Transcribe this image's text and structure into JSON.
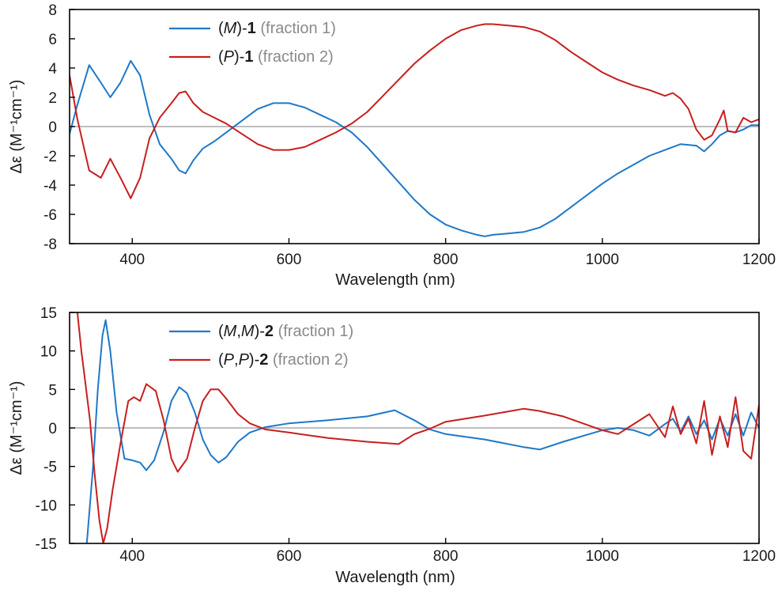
{
  "colors": {
    "blue": "#1f78c8",
    "red": "#c81e1e",
    "zero": "#a8a8a8",
    "note": "#8a8a8a"
  },
  "chart_data": [
    {
      "type": "line",
      "title": "",
      "xlabel": "Wavelength (nm)",
      "ylabel": "Δε (M⁻¹cm⁻¹)",
      "xlim": [
        320,
        1200
      ],
      "ylim": [
        -8,
        8
      ],
      "xticks": [
        400,
        600,
        800,
        1000,
        1200
      ],
      "yticks": [
        -8,
        -6,
        -4,
        -2,
        0,
        2,
        4,
        6,
        8
      ],
      "grid": false,
      "legend_position": "top-center",
      "legend": [
        {
          "prefix": "(",
          "italic": "M",
          "suffix": ")-",
          "bold": "1",
          "note": " (fraction 1)",
          "color": "blue"
        },
        {
          "prefix": "(",
          "italic": "P",
          "suffix": ")-",
          "bold": "1",
          "note": " (fraction 2)",
          "color": "red"
        }
      ],
      "series": [
        {
          "name": "(M)-1 (fraction 1)",
          "color": "blue",
          "x": [
            320,
            330,
            345,
            360,
            372,
            385,
            398,
            410,
            422,
            435,
            450,
            460,
            468,
            478,
            490,
            505,
            520,
            540,
            560,
            580,
            600,
            620,
            640,
            660,
            680,
            700,
            720,
            740,
            760,
            780,
            800,
            820,
            840,
            850,
            860,
            880,
            900,
            920,
            940,
            960,
            980,
            1000,
            1020,
            1040,
            1060,
            1080,
            1100,
            1120,
            1130,
            1140,
            1150,
            1160,
            1170,
            1180,
            1190,
            1200
          ],
          "y": [
            -0.5,
            1.5,
            4.2,
            3.0,
            2.0,
            3.0,
            4.5,
            3.5,
            0.8,
            -1.2,
            -2.2,
            -3.0,
            -3.2,
            -2.3,
            -1.5,
            -1.0,
            -0.4,
            0.4,
            1.2,
            1.6,
            1.6,
            1.3,
            0.8,
            0.3,
            -0.4,
            -1.4,
            -2.6,
            -3.8,
            -5.0,
            -6.0,
            -6.7,
            -7.1,
            -7.4,
            -7.5,
            -7.4,
            -7.3,
            -7.2,
            -6.9,
            -6.3,
            -5.5,
            -4.7,
            -3.9,
            -3.2,
            -2.6,
            -2.0,
            -1.6,
            -1.2,
            -1.3,
            -1.7,
            -1.2,
            -0.6,
            -0.3,
            -0.4,
            -0.2,
            0.1,
            0.1
          ]
        },
        {
          "name": "(P)-1 (fraction 2)",
          "color": "red",
          "x": [
            320,
            330,
            345,
            360,
            372,
            385,
            398,
            410,
            422,
            435,
            450,
            460,
            468,
            478,
            490,
            505,
            520,
            540,
            560,
            580,
            600,
            620,
            640,
            660,
            680,
            700,
            720,
            740,
            760,
            780,
            800,
            820,
            840,
            850,
            860,
            880,
            900,
            920,
            940,
            960,
            980,
            1000,
            1020,
            1040,
            1060,
            1080,
            1090,
            1100,
            1110,
            1120,
            1130,
            1140,
            1150,
            1155,
            1160,
            1170,
            1180,
            1190,
            1200
          ],
          "y": [
            3.5,
            0.5,
            -3.0,
            -3.5,
            -2.2,
            -3.5,
            -4.9,
            -3.5,
            -0.8,
            0.6,
            1.6,
            2.3,
            2.4,
            1.6,
            1.0,
            0.6,
            0.2,
            -0.5,
            -1.2,
            -1.6,
            -1.6,
            -1.4,
            -0.9,
            -0.4,
            0.2,
            1.0,
            2.1,
            3.2,
            4.3,
            5.2,
            6.0,
            6.6,
            6.9,
            7.0,
            7.0,
            6.9,
            6.8,
            6.5,
            5.9,
            5.1,
            4.4,
            3.7,
            3.2,
            2.8,
            2.5,
            2.1,
            2.3,
            1.9,
            1.2,
            -0.2,
            -0.9,
            -0.6,
            0.5,
            1.1,
            -0.3,
            -0.4,
            0.6,
            0.3,
            0.5
          ]
        }
      ]
    },
    {
      "type": "line",
      "title": "",
      "xlabel": "Wavelength (nm)",
      "ylabel": "Δε (M⁻¹cm⁻¹)",
      "xlim": [
        320,
        1200
      ],
      "ylim": [
        -15,
        15
      ],
      "xticks": [
        400,
        600,
        800,
        1000,
        1200
      ],
      "yticks": [
        -15,
        -10,
        -5,
        0,
        5,
        10,
        15
      ],
      "grid": false,
      "legend_position": "top-center",
      "legend": [
        {
          "prefix": "(",
          "italic": "M",
          "mid": ",",
          "italic2": "M",
          "suffix": ")-",
          "bold": "2",
          "note": " (fraction 1)",
          "color": "blue"
        },
        {
          "prefix": "(",
          "italic": "P",
          "mid": ",",
          "italic2": "P",
          "suffix": ")-",
          "bold": "2",
          "note": " (fraction 2)",
          "color": "red"
        }
      ],
      "series": [
        {
          "name": "(M,M)-2 (fraction 1)",
          "color": "blue",
          "x": [
            342,
            350,
            356,
            362,
            366,
            372,
            380,
            390,
            400,
            410,
            418,
            428,
            440,
            450,
            460,
            470,
            480,
            490,
            500,
            510,
            520,
            535,
            550,
            570,
            600,
            650,
            700,
            735,
            760,
            780,
            800,
            850,
            900,
            920,
            950,
            1000,
            1020,
            1040,
            1060,
            1080,
            1090,
            1100,
            1110,
            1120,
            1130,
            1140,
            1150,
            1160,
            1170,
            1180,
            1190,
            1200
          ],
          "y": [
            -15,
            -5,
            5,
            12,
            14,
            10,
            2,
            -4,
            -4.2,
            -4.5,
            -5.5,
            -4.2,
            -0.5,
            3.5,
            5.3,
            4.5,
            2,
            -1.5,
            -3.5,
            -4.5,
            -3.8,
            -1.8,
            -0.6,
            0.1,
            0.6,
            1.0,
            1.5,
            2.3,
            1.0,
            -0.2,
            -0.8,
            -1.5,
            -2.5,
            -2.8,
            -1.8,
            -0.3,
            0,
            -0.3,
            -1.0,
            0.5,
            1.2,
            -0.5,
            1.5,
            -0.8,
            1.0,
            -1.5,
            1.2,
            -1.0,
            1.8,
            -1.0,
            2.0,
            0
          ]
        },
        {
          "name": "(P,P)-2 (fraction 2)",
          "color": "red",
          "x": [
            330,
            335,
            340,
            346,
            352,
            358,
            363,
            368,
            375,
            385,
            395,
            402,
            410,
            418,
            430,
            440,
            450,
            458,
            470,
            480,
            490,
            500,
            510,
            520,
            535,
            550,
            570,
            600,
            650,
            700,
            740,
            760,
            780,
            800,
            850,
            900,
            920,
            950,
            1000,
            1020,
            1040,
            1060,
            1080,
            1090,
            1100,
            1110,
            1120,
            1130,
            1140,
            1150,
            1160,
            1170,
            1180,
            1190,
            1200
          ],
          "y": [
            15,
            10,
            6,
            1,
            -6,
            -12,
            -15,
            -13,
            -8,
            -2,
            3.5,
            4.0,
            3.5,
            5.7,
            4.8,
            1,
            -4,
            -5.7,
            -4,
            0,
            3.5,
            5.0,
            5.0,
            3.8,
            1.8,
            0.6,
            -0.2,
            -0.6,
            -1.3,
            -1.8,
            -2.1,
            -0.8,
            -0.1,
            0.8,
            1.6,
            2.5,
            2.2,
            1.5,
            -0.3,
            -0.8,
            0.5,
            1.8,
            -1.2,
            2.8,
            -0.8,
            1.2,
            -2.0,
            3.5,
            -3.5,
            1.5,
            -2.5,
            4.0,
            -3.0,
            -4.0,
            3.0
          ]
        }
      ]
    }
  ]
}
